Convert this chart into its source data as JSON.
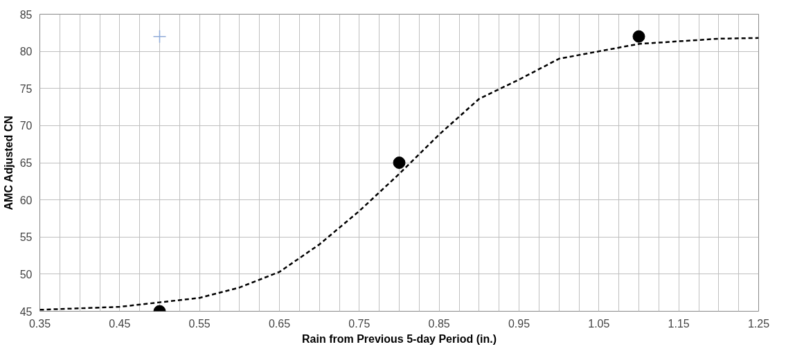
{
  "chart_data": {
    "type": "scatter",
    "xlabel": "Rain from Previous 5-day Period (in.)",
    "ylabel": "AMC Adjusted CN",
    "xlim": [
      0.35,
      1.25
    ],
    "ylim": [
      45,
      85
    ],
    "xticks": [
      0.35,
      {
        "value": 0.375,
        "label": null
      },
      {
        "value": 0.4,
        "label": null
      },
      {
        "value": 0.425,
        "label": null
      },
      0.45,
      {
        "value": 0.475,
        "label": null
      },
      {
        "value": 0.5,
        "label": null
      },
      {
        "value": 0.525,
        "label": null
      },
      0.55,
      {
        "value": 0.575,
        "label": null
      },
      {
        "value": 0.6,
        "label": null
      },
      {
        "value": 0.625,
        "label": null
      },
      0.65,
      {
        "value": 0.675,
        "label": null
      },
      {
        "value": 0.7,
        "label": null
      },
      {
        "value": 0.725,
        "label": null
      },
      0.75,
      {
        "value": 0.775,
        "label": null
      },
      {
        "value": 0.8,
        "label": null
      },
      {
        "value": 0.825,
        "label": null
      },
      0.85,
      {
        "value": 0.875,
        "label": null
      },
      {
        "value": 0.9,
        "label": null
      },
      {
        "value": 0.925,
        "label": null
      },
      0.95,
      {
        "value": 0.975,
        "label": null
      },
      {
        "value": 1.0,
        "label": null
      },
      {
        "value": 1.025,
        "label": null
      },
      1.05,
      {
        "value": 1.075,
        "label": null
      },
      {
        "value": 1.1,
        "label": null
      },
      {
        "value": 1.125,
        "label": null
      },
      1.15,
      {
        "value": 1.175,
        "label": null
      },
      {
        "value": 1.2,
        "label": null
      },
      {
        "value": 1.225,
        "label": null
      },
      1.25
    ],
    "yticks": [
      45,
      50,
      55,
      60,
      65,
      70,
      75,
      80,
      85
    ],
    "grid": true,
    "series": [
      {
        "type": "line",
        "color": "#000000",
        "line_style": "dashed",
        "x": [
          0.35,
          0.45,
          0.5,
          0.55,
          0.6,
          0.65,
          0.7,
          0.75,
          0.8,
          0.85,
          0.9,
          0.95,
          1.0,
          1.05,
          1.1,
          1.2,
          1.25
        ],
        "values": [
          45.2,
          45.6,
          46.2,
          46.8,
          48.2,
          50.3,
          54,
          58.5,
          63.5,
          68.8,
          73.6,
          76.2,
          79,
          80,
          81,
          81.7,
          81.8
        ]
      },
      {
        "color": "#000000",
        "marker": "circle",
        "x": [
          0.5,
          0.8,
          1.1
        ],
        "values": [
          45,
          65,
          82
        ]
      },
      {
        "color": "#8eaad8",
        "marker": "cross",
        "x": [
          0.5
        ],
        "values": [
          82
        ]
      }
    ]
  }
}
